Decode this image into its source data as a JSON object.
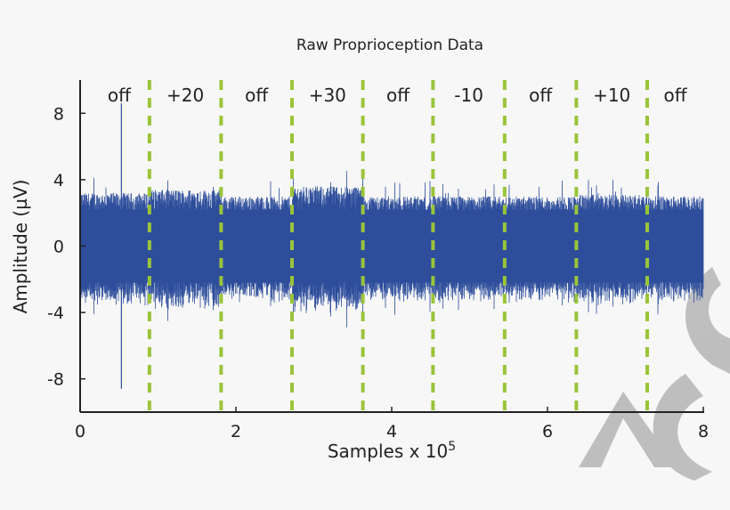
{
  "chart_data": {
    "type": "line",
    "title": "Raw Proprioception Data",
    "xlabel": "Samples x 10",
    "xlabel_exponent": "5",
    "ylabel": "Amplitude (µV)",
    "xlim": [
      0,
      8
    ],
    "ylim": [
      -10,
      10
    ],
    "xticks": [
      0,
      2,
      4,
      6,
      8
    ],
    "yticks": [
      8,
      4,
      0,
      -4,
      -8
    ],
    "grid": false,
    "series_color": "#2e4e9c",
    "divider_color": "#9ac43a",
    "dividers_x": [
      0.89,
      1.81,
      2.72,
      3.63,
      4.53,
      5.45,
      6.37,
      7.28
    ],
    "segments": [
      {
        "label": "off",
        "x": [
          0,
          0.89
        ],
        "envelope": 3.2
      },
      {
        "label": "+20",
        "x": [
          0.89,
          1.81
        ],
        "envelope": 3.4
      },
      {
        "label": "off",
        "x": [
          1.81,
          2.72
        ],
        "envelope": 3.0
      },
      {
        "label": "+30",
        "x": [
          2.72,
          3.63
        ],
        "envelope": 3.6
      },
      {
        "label": "off",
        "x": [
          3.63,
          4.53
        ],
        "envelope": 3.0
      },
      {
        "label": "-10",
        "x": [
          4.53,
          5.45
        ],
        "envelope": 3.0
      },
      {
        "label": "off",
        "x": [
          5.45,
          6.37
        ],
        "envelope": 3.0
      },
      {
        "label": "+10",
        "x": [
          6.37,
          7.28
        ],
        "envelope": 3.1
      },
      {
        "label": "off",
        "x": [
          7.28,
          8.0
        ],
        "envelope": 3.0
      }
    ],
    "spikes": [
      {
        "x": 0.53,
        "ymax": 8.6,
        "ymin": -8.6
      }
    ]
  }
}
